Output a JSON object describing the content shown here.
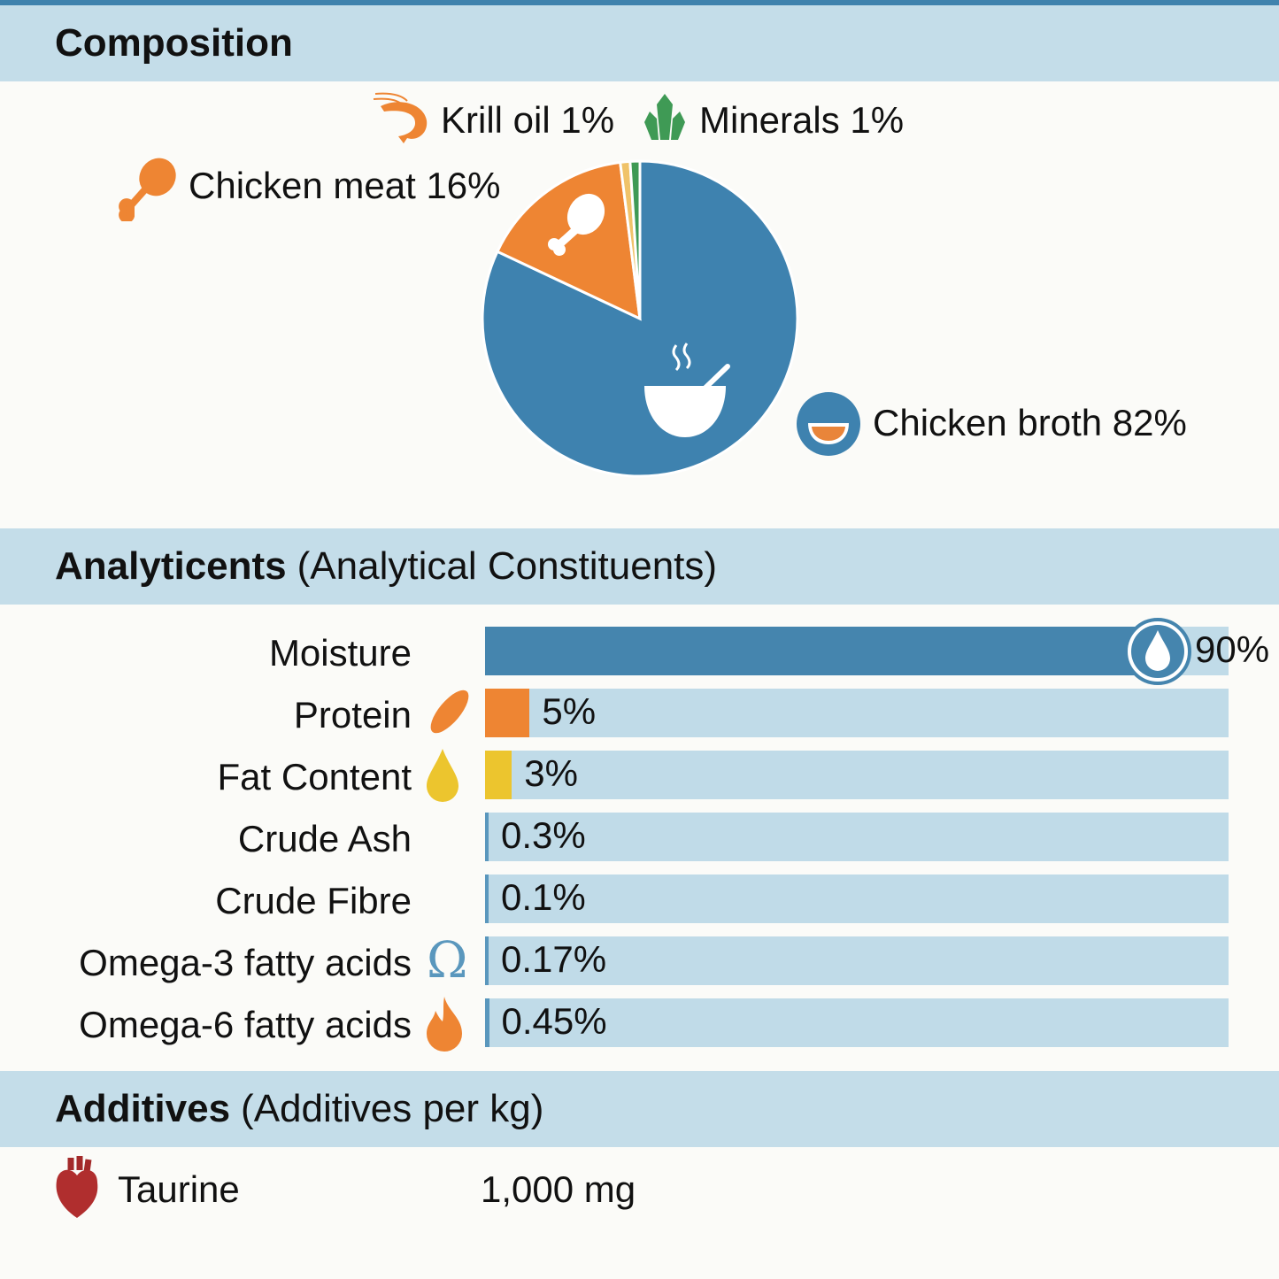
{
  "composition": {
    "title": "Composition",
    "chart_data": {
      "type": "pie",
      "categories": [
        "Chicken broth",
        "Chicken meat",
        "Krill oil",
        "Minerals"
      ],
      "values": [
        82,
        16,
        1,
        1
      ],
      "labels": [
        "Chicken broth 82%",
        "Chicken meat 16%",
        "Krill oil 1%",
        "Minerals 1%"
      ],
      "colors": [
        "#3e82af",
        "#ee8533",
        "#f0c36a",
        "#3f9a55"
      ],
      "icons": [
        "soup-bowl-icon",
        "chicken-leg-icon",
        "shrimp-icon",
        "crystal-icon"
      ]
    }
  },
  "analytical": {
    "title_bold": "Analyticents",
    "title_rest": "(Analytical Constituents)",
    "chart_data": {
      "type": "bar",
      "orientation": "horizontal",
      "categories": [
        "Moisture",
        "Protein",
        "Fat Content",
        "Crude Ash",
        "Crude Fibre",
        "Omega-3 fatty acids",
        "Omega-6 fatty acids"
      ],
      "values": [
        90,
        5,
        3,
        0.3,
        0.1,
        0.17,
        0.45
      ],
      "labels": [
        "90%",
        "5%",
        "3%",
        "0.3%",
        "0.1%",
        "0.17%",
        "0.45%"
      ],
      "unit": "%",
      "xlim": [
        0,
        100
      ],
      "colors": [
        "#4585ae",
        "#ee8533",
        "#ecc52e",
        "#5a97bd",
        "#5a97bd",
        "#5a97bd",
        "#5a97bd"
      ],
      "icons": [
        "water-drop-icon",
        "muscle-icon",
        "oil-drop-icon",
        "",
        "",
        "omega-icon",
        "flame-icon"
      ]
    }
  },
  "additives": {
    "title_bold": "Additives",
    "title_rest": "(Additives per kg)",
    "items": [
      {
        "name": "Taurine",
        "amount": "1,000 mg",
        "icon": "heart-icon"
      }
    ]
  }
}
